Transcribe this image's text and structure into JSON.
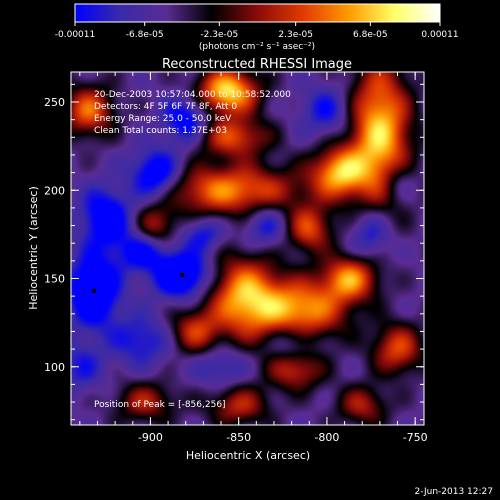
{
  "colorbar": {
    "tick_labels": [
      "-0.00011",
      "-6.8e-05",
      "-2.3e-05",
      "2.3e-05",
      "6.8e-05",
      "0.00011"
    ],
    "min": -0.00011,
    "max": 0.00011,
    "unit_label": "(photons cm⁻² s⁻¹ asec⁻²)",
    "colors": [
      "#0000ff",
      "#3a2aa8",
      "#5a2c93",
      "#000000",
      "#8a0b0b",
      "#e03a00",
      "#ff9a00",
      "#ffff66",
      "#ffffff"
    ]
  },
  "chart_data": {
    "type": "heatmap",
    "title": "Reconstructed RHESSI Image",
    "xlabel": "Heliocentric X (arcsec)",
    "ylabel": "Heliocentric Y (arcsec)",
    "xlim": [
      -945,
      -745
    ],
    "ylim": [
      67,
      267
    ],
    "x_ticks": [
      -900,
      -850,
      -800,
      -750
    ],
    "y_ticks": [
      100,
      150,
      200,
      250
    ],
    "x_tick_labels": [
      "-900",
      "-850",
      "-800",
      "-750"
    ],
    "y_tick_labels": [
      "100",
      "150",
      "200",
      "250"
    ],
    "annotations": [
      "20-Dec-2003 10:57:04.000 to 10:58:52.000",
      "Detectors: 4F 5F 6F 7F 8F, Att 0",
      "Energy Range: 25.0 - 50.0 keV",
      "Clean    Total counts: 1.37E+03"
    ],
    "peak_label": "Position of Peak = [-856,256]",
    "peak_position": [
      -856,
      256
    ],
    "blobs": [
      {
        "x": -856,
        "y": 256,
        "sx": 12,
        "sy": 9,
        "amp": 0.00011
      },
      {
        "x": -847,
        "y": 140,
        "sx": 14,
        "sy": 16,
        "amp": 9e-05
      },
      {
        "x": -815,
        "y": 132,
        "sx": 18,
        "sy": 12,
        "amp": 9e-05
      },
      {
        "x": -770,
        "y": 232,
        "sx": 12,
        "sy": 28,
        "amp": 0.000105
      },
      {
        "x": -793,
        "y": 210,
        "sx": 11,
        "sy": 10,
        "amp": 9e-05
      },
      {
        "x": -855,
        "y": 200,
        "sx": 28,
        "sy": 10,
        "amp": 8e-05
      },
      {
        "x": -853,
        "y": 230,
        "sx": 14,
        "sy": 8,
        "amp": 6e-05
      },
      {
        "x": -935,
        "y": 245,
        "sx": 10,
        "sy": 10,
        "amp": 7e-05
      },
      {
        "x": -787,
        "y": 150,
        "sx": 11,
        "sy": 9,
        "amp": 8e-05
      },
      {
        "x": -760,
        "y": 110,
        "sx": 10,
        "sy": 10,
        "amp": 6e-05
      },
      {
        "x": -810,
        "y": 178,
        "sx": 9,
        "sy": 9,
        "amp": 6e-05
      },
      {
        "x": -818,
        "y": 98,
        "sx": 11,
        "sy": 8,
        "amp": 5e-05
      },
      {
        "x": -875,
        "y": 120,
        "sx": 10,
        "sy": 9,
        "amp": 5e-05
      },
      {
        "x": -897,
        "y": 180,
        "sx": 8,
        "sy": 8,
        "amp": 4e-05
      },
      {
        "x": -903,
        "y": 80,
        "sx": 12,
        "sy": 8,
        "amp": 4e-05
      },
      {
        "x": -850,
        "y": 78,
        "sx": 12,
        "sy": 8,
        "amp": 4.5e-05
      },
      {
        "x": -780,
        "y": 78,
        "sx": 10,
        "sy": 8,
        "amp": 4e-05
      },
      {
        "x": -932,
        "y": 143,
        "sx": 10,
        "sy": 14,
        "amp": -0.0001
      },
      {
        "x": -882,
        "y": 152,
        "sx": 11,
        "sy": 9,
        "amp": -0.0001
      },
      {
        "x": -897,
        "y": 208,
        "sx": 10,
        "sy": 10,
        "amp": -9e-05
      },
      {
        "x": -925,
        "y": 185,
        "sx": 10,
        "sy": 12,
        "amp": -8e-05
      },
      {
        "x": -880,
        "y": 240,
        "sx": 9,
        "sy": 9,
        "amp": -7e-05
      },
      {
        "x": -905,
        "y": 165,
        "sx": 10,
        "sy": 8,
        "amp": -6e-05
      },
      {
        "x": -870,
        "y": 175,
        "sx": 8,
        "sy": 7,
        "amp": -5e-05
      },
      {
        "x": -835,
        "y": 180,
        "sx": 9,
        "sy": 9,
        "amp": -5e-05
      },
      {
        "x": -820,
        "y": 115,
        "sx": 9,
        "sy": 8,
        "amp": -4e-05
      },
      {
        "x": -775,
        "y": 175,
        "sx": 8,
        "sy": 10,
        "amp": -5e-05
      },
      {
        "x": -760,
        "y": 205,
        "sx": 7,
        "sy": 8,
        "amp": -4e-05
      },
      {
        "x": -800,
        "y": 245,
        "sx": 10,
        "sy": 10,
        "amp": -5e-05
      },
      {
        "x": -905,
        "y": 115,
        "sx": 12,
        "sy": 10,
        "amp": -5e-05
      },
      {
        "x": -860,
        "y": 100,
        "sx": 10,
        "sy": 8,
        "amp": -4e-05
      },
      {
        "x": -940,
        "y": 100,
        "sx": 10,
        "sy": 10,
        "amp": -4e-05
      }
    ]
  },
  "footer": {
    "date": "2-Jun-2013 12:27"
  }
}
